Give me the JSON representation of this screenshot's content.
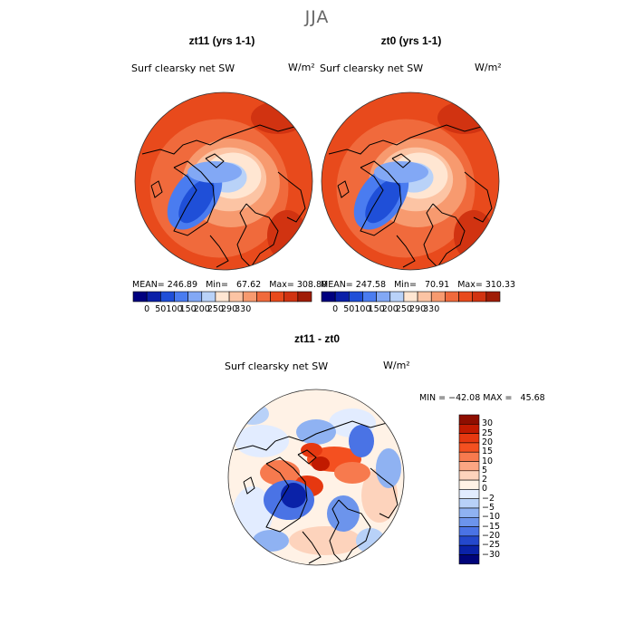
{
  "figure": {
    "season": "JJA",
    "panels": [
      {
        "title": "zt11 (yrs 1-1)",
        "variable": "Surf clearsky net SW",
        "units": "W/m²",
        "stats": "MEAN= 246.89   Min=   67.62   Max= 308.80",
        "colorbar_ticks": [
          "0",
          "50",
          "100",
          "150",
          "200",
          "250",
          "290",
          "330"
        ]
      },
      {
        "title": "zt0 (yrs 1-1)",
        "variable": "Surf clearsky net SW",
        "units": "W/m²",
        "stats": "MEAN= 247.58   Min=   70.91   Max= 310.33",
        "colorbar_ticks": [
          "0",
          "50",
          "100",
          "150",
          "200",
          "250",
          "290",
          "330"
        ]
      }
    ],
    "difference": {
      "title": "zt11 - zt0",
      "variable": "Surf clearsky net SW",
      "units": "W/m²",
      "stats": "MIN = −42.08 MAX =   45.68",
      "colorbar_ticks": [
        "30",
        "25",
        "20",
        "15",
        "10",
        "5",
        "2",
        "0",
        "−2",
        "−5",
        "−10",
        "−15",
        "−20",
        "−25",
        "−30"
      ]
    },
    "colors": {
      "abs_scale": [
        "#00007f",
        "#0a1fa8",
        "#1f4fd8",
        "#4a7cf0",
        "#82a8f5",
        "#b9d2f8",
        "#ffe6d2",
        "#fcc4a4",
        "#f79a6f",
        "#f06a3c",
        "#e84a1c",
        "#d13311",
        "#a01c06"
      ],
      "diff_scale": [
        "#8e0e00",
        "#c11a00",
        "#e63810",
        "#f45020",
        "#f77a4e",
        "#fba683",
        "#fdd3bc",
        "#fff2e6",
        "#e2ecff",
        "#b8d1f8",
        "#8fb2f2",
        "#6c94ec",
        "#4a73e5",
        "#2448cc",
        "#0a22a8",
        "#00047a"
      ],
      "coast": "#000000"
    }
  }
}
